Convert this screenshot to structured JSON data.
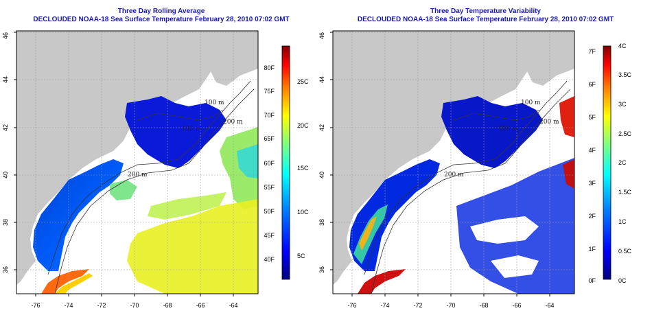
{
  "left": {
    "title_line1": "Three Day Rolling Average",
    "title_line2": "DECLOUDED NOAA-18 Sea Surface Temperature February 28, 2010 07:02 GMT",
    "x_ticks": [
      "-76",
      "-74",
      "-72",
      "-70",
      "-68",
      "-66",
      "-64"
    ],
    "y_ticks": [
      "36",
      "38",
      "40",
      "42",
      "44",
      "46"
    ],
    "contour_labels": [
      "100 m",
      "200 m",
      "100 m",
      "200 m",
      "200 m"
    ],
    "colorbar": {
      "left_labels": [
        "80F",
        "75F",
        "70F",
        "65F",
        "60F",
        "55F",
        "50F",
        "45F",
        "40F"
      ],
      "right_labels": [
        "25C",
        "20C",
        "15C",
        "10C",
        "5C"
      ]
    }
  },
  "right": {
    "title_line1": "Three Day Temperature Variability",
    "title_line2": "DECLOUDED NOAA-18 Sea Surface Temperature February 28, 2010 07:02 GMT",
    "x_ticks": [
      "-76",
      "-74",
      "-72",
      "-70",
      "-68",
      "-66",
      "-64"
    ],
    "y_ticks": [
      "36",
      "38",
      "40",
      "42",
      "44",
      "46"
    ],
    "contour_labels": [
      "100 m",
      "200 m",
      "100 m",
      "200 m",
      "200 m"
    ],
    "colorbar": {
      "left_labels": [
        "7F",
        "6F",
        "5F",
        "4F",
        "3F",
        "2F",
        "1F",
        "0F"
      ],
      "right_labels": [
        "4C",
        "3.5C",
        "3C",
        "2.5C",
        "2C",
        "1.5C",
        "1C",
        "0.5C",
        "0C"
      ]
    }
  },
  "colors": {
    "land": "#c8c8c8",
    "ocean_nodata": "#ffffff",
    "title": "#1a1aa8",
    "sst_scale": [
      "#00007f",
      "#0000ff",
      "#007fff",
      "#00ffff",
      "#7fff7f",
      "#ffff00",
      "#ff7f00",
      "#ff0000",
      "#7f0000"
    ]
  }
}
